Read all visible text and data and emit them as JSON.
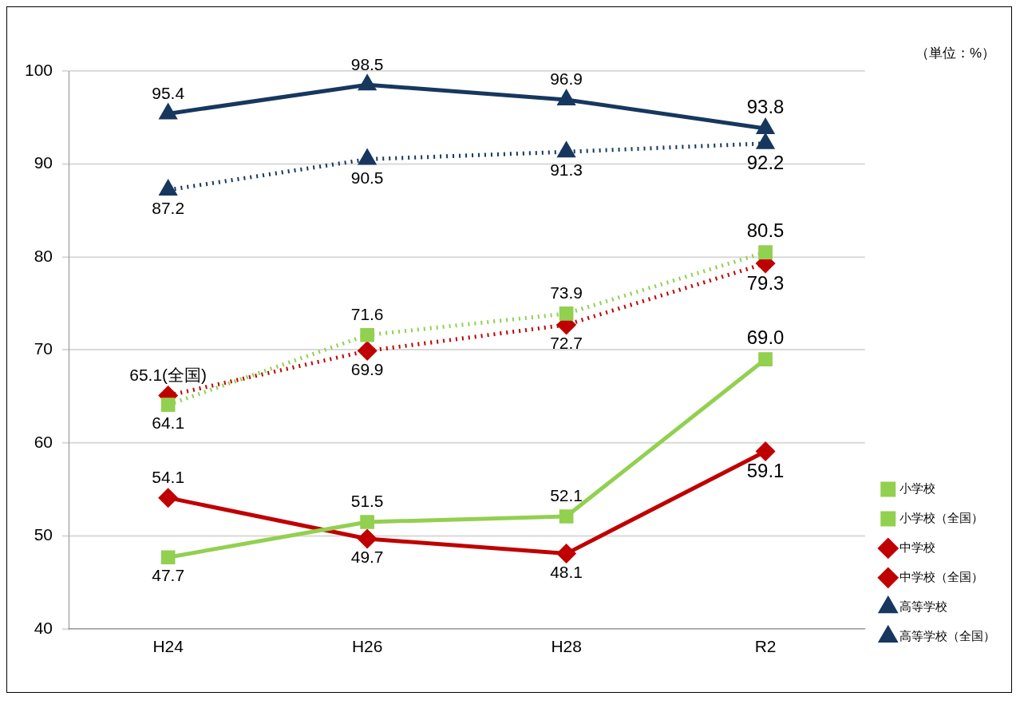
{
  "chart_data": {
    "type": "line",
    "categories": [
      "H24",
      "H26",
      "H28",
      "R2"
    ],
    "ylim": [
      40,
      100
    ],
    "yticks": [
      40,
      50,
      60,
      70,
      80,
      90,
      100
    ],
    "grid": "y",
    "legend": "right",
    "data_labels": true,
    "annotations": [
      "（単位：%）"
    ],
    "series": [
      {
        "name": "小学校",
        "color": "#92d050",
        "values": [
          47.7,
          51.5,
          52.1,
          69.0
        ],
        "marker": "square",
        "line_style": "solid",
        "value_labels": [
          "47.7",
          "51.5",
          "52.1",
          "69.0"
        ]
      },
      {
        "name": "小学校（全国）",
        "color": "#92d050",
        "values": [
          64.1,
          71.6,
          73.9,
          80.5
        ],
        "marker": "square",
        "line_style": "dotted",
        "value_labels": [
          "64.1",
          "71.6",
          "73.9",
          "80.5"
        ]
      },
      {
        "name": "中学校",
        "color": "#c00000",
        "values": [
          54.1,
          49.7,
          48.1,
          59.1
        ],
        "marker": "diamond",
        "line_style": "solid",
        "value_labels": [
          "54.1",
          "49.7",
          "48.1",
          "59.1"
        ]
      },
      {
        "name": "中学校（全国）",
        "color": "#c00000",
        "values": [
          65.1,
          69.9,
          72.7,
          79.3
        ],
        "marker": "diamond",
        "line_style": "dotted",
        "value_labels": [
          "65.1(全国)",
          "69.9",
          "72.7",
          "79.3"
        ]
      },
      {
        "name": "高等学校",
        "color": "#17375e",
        "values": [
          95.4,
          98.5,
          96.9,
          93.8
        ],
        "marker": "triangle",
        "line_style": "solid",
        "value_labels": [
          "95.4",
          "98.5",
          "96.9",
          "93.8"
        ]
      },
      {
        "name": "高等学校（全国）",
        "color": "#17375e",
        "values": [
          87.2,
          90.5,
          91.3,
          92.2
        ],
        "marker": "triangle",
        "line_style": "dotted",
        "value_labels": [
          "87.2",
          "90.5",
          "91.3",
          "92.2"
        ]
      }
    ]
  }
}
